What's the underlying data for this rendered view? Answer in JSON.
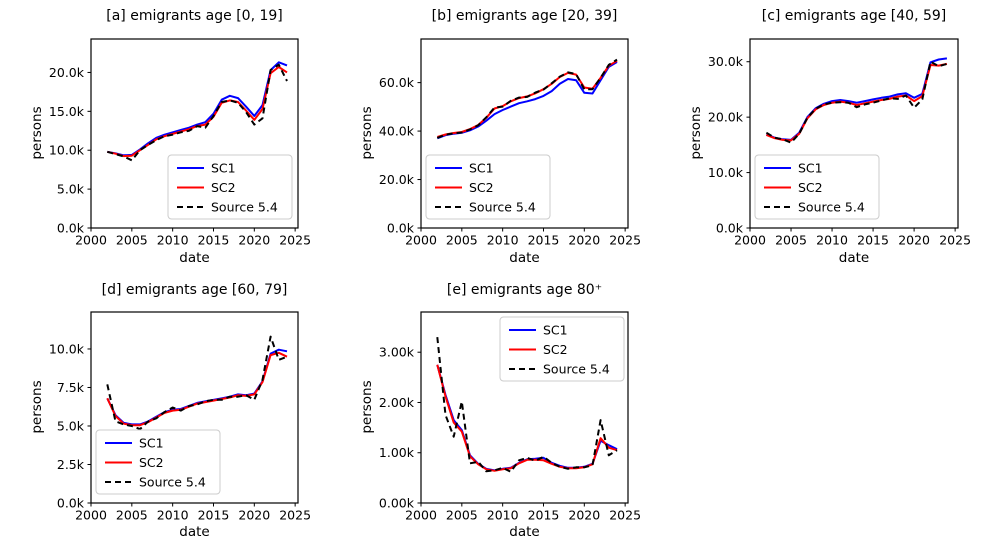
{
  "figure": {
    "background": "#ffffff",
    "series_colors": {
      "SC1": "#0000ff",
      "SC2": "#ff0000",
      "Source 5.4": "#000000"
    },
    "legend_labels": [
      "SC1",
      "SC2",
      "Source 5.4"
    ]
  },
  "chart_data": [
    {
      "id": "a",
      "type": "line",
      "title": "[a] emigrants age [0, 19]",
      "xlabel": "date",
      "ylabel": "persons",
      "xlim": [
        2000,
        2025.35
      ],
      "ylim": [
        0,
        24300
      ],
      "xticks": [
        2000,
        2005,
        2010,
        2015,
        2020,
        2025
      ],
      "yticks": [
        0,
        5000,
        10000,
        15000,
        20000
      ],
      "ytick_labels": [
        "0.0k",
        "5.0k",
        "10.0k",
        "15.0k",
        "20.0k"
      ],
      "legend_loc": "lower right",
      "grid": false,
      "x": [
        2002,
        2003,
        2004,
        2005,
        2006,
        2007,
        2008,
        2009,
        2010,
        2011,
        2012,
        2013,
        2014,
        2015,
        2016,
        2017,
        2018,
        2019,
        2020,
        2021,
        2022,
        2023,
        2024
      ],
      "series": [
        {
          "name": "SC1",
          "color": "#0000ff",
          "style": "solid",
          "values": [
            9800,
            9600,
            9350,
            9400,
            10100,
            10900,
            11600,
            12000,
            12300,
            12600,
            12900,
            13300,
            13600,
            14700,
            16500,
            17000,
            16700,
            15600,
            14400,
            15800,
            20300,
            21300,
            20900
          ]
        },
        {
          "name": "SC2",
          "color": "#ff0000",
          "style": "solid",
          "values": [
            9800,
            9550,
            9250,
            9300,
            10000,
            10700,
            11400,
            11800,
            12100,
            12400,
            12700,
            13100,
            13300,
            14300,
            16100,
            16400,
            16200,
            15100,
            13900,
            15300,
            19900,
            20700,
            20000
          ]
        },
        {
          "name": "Source 5.4",
          "color": "#000000",
          "style": "dashed",
          "values": [
            9800,
            9500,
            9200,
            8700,
            10000,
            10700,
            11300,
            11800,
            12000,
            12300,
            12500,
            13100,
            12900,
            14400,
            16200,
            16400,
            16100,
            14900,
            13300,
            14100,
            20300,
            21000,
            18900
          ]
        }
      ]
    },
    {
      "id": "b",
      "type": "line",
      "title": "[b] emigrants age [20, 39]",
      "xlabel": "date",
      "ylabel": "persons",
      "xlim": [
        2000,
        2025.35
      ],
      "ylim": [
        0,
        78000
      ],
      "xticks": [
        2000,
        2005,
        2010,
        2015,
        2020,
        2025
      ],
      "yticks": [
        0,
        20000,
        40000,
        60000
      ],
      "ytick_labels": [
        "0.0k",
        "20.0k",
        "40.0k",
        "60.0k"
      ],
      "legend_loc": "lower left",
      "grid": false,
      "x": [
        2002,
        2003,
        2004,
        2005,
        2006,
        2007,
        2008,
        2009,
        2010,
        2011,
        2012,
        2013,
        2014,
        2015,
        2016,
        2017,
        2018,
        2019,
        2020,
        2021,
        2022,
        2023,
        2024
      ],
      "series": [
        {
          "name": "SC1",
          "color": "#0000ff",
          "style": "solid",
          "values": [
            37000,
            38300,
            38900,
            39300,
            40300,
            41900,
            44300,
            47000,
            48700,
            50100,
            51500,
            52300,
            53200,
            54500,
            56500,
            59500,
            61500,
            61000,
            55800,
            55500,
            61000,
            66500,
            68500
          ]
        },
        {
          "name": "SC2",
          "color": "#ff0000",
          "style": "solid",
          "values": [
            37600,
            38600,
            39200,
            39600,
            40800,
            42500,
            45500,
            49300,
            50300,
            52300,
            53600,
            54300,
            55600,
            57300,
            59500,
            62300,
            64000,
            63300,
            58000,
            57500,
            62000,
            67000,
            69000
          ]
        },
        {
          "name": "Source 5.4",
          "color": "#000000",
          "style": "dashed",
          "values": [
            37200,
            38500,
            39100,
            39400,
            40700,
            42400,
            45700,
            49700,
            50100,
            52500,
            53800,
            54100,
            55900,
            57100,
            59700,
            62500,
            64200,
            63500,
            57200,
            57300,
            62000,
            67300,
            69500
          ]
        }
      ]
    },
    {
      "id": "c",
      "type": "line",
      "title": "[c] emigrants age [40, 59]",
      "xlabel": "date",
      "ylabel": "persons",
      "xlim": [
        2000,
        2025.35
      ],
      "ylim": [
        0,
        34100
      ],
      "xticks": [
        2000,
        2005,
        2010,
        2015,
        2020,
        2025
      ],
      "yticks": [
        0,
        10000,
        20000,
        30000
      ],
      "ytick_labels": [
        "0.0k",
        "10.0k",
        "20.0k",
        "30.0k"
      ],
      "legend_loc": "lower left",
      "grid": false,
      "x": [
        2002,
        2003,
        2004,
        2005,
        2006,
        2007,
        2008,
        2009,
        2010,
        2011,
        2012,
        2013,
        2014,
        2015,
        2016,
        2017,
        2018,
        2019,
        2020,
        2021,
        2022,
        2023,
        2024
      ],
      "series": [
        {
          "name": "SC1",
          "color": "#0000ff",
          "style": "solid",
          "values": [
            16900,
            16300,
            16000,
            15900,
            17200,
            20000,
            21600,
            22400,
            22900,
            23100,
            22900,
            22600,
            22900,
            23200,
            23500,
            23700,
            24100,
            24300,
            23500,
            24200,
            29900,
            30400,
            30600
          ]
        },
        {
          "name": "SC2",
          "color": "#ff0000",
          "style": "solid",
          "values": [
            16800,
            16200,
            15900,
            15800,
            17000,
            19800,
            21400,
            22200,
            22600,
            22800,
            22600,
            22200,
            22500,
            22800,
            23100,
            23300,
            23700,
            23900,
            22900,
            23800,
            29400,
            29300,
            29600
          ]
        },
        {
          "name": "Source 5.4",
          "color": "#000000",
          "style": "dashed",
          "values": [
            17200,
            16300,
            16000,
            15400,
            17000,
            19900,
            21500,
            22300,
            22600,
            22700,
            22600,
            21800,
            22300,
            22600,
            23000,
            23400,
            23300,
            23900,
            21700,
            23200,
            30000,
            29200,
            29600
          ]
        }
      ]
    },
    {
      "id": "d",
      "type": "line",
      "title": "[d] emigrants age [60, 79]",
      "xlabel": "date",
      "ylabel": "persons",
      "xlim": [
        2000,
        2025.35
      ],
      "ylim": [
        0,
        12400
      ],
      "xticks": [
        2000,
        2005,
        2010,
        2015,
        2020,
        2025
      ],
      "yticks": [
        0,
        2500,
        5000,
        7500,
        10000
      ],
      "ytick_labels": [
        "0.0k",
        "2.5k",
        "5.0k",
        "7.5k",
        "10.0k"
      ],
      "legend_loc": "lower left",
      "grid": false,
      "x": [
        2002,
        2003,
        2004,
        2005,
        2006,
        2007,
        2008,
        2009,
        2010,
        2011,
        2012,
        2013,
        2014,
        2015,
        2016,
        2017,
        2018,
        2019,
        2020,
        2021,
        2022,
        2023,
        2024
      ],
      "series": [
        {
          "name": "SC1",
          "color": "#0000ff",
          "style": "solid",
          "values": [
            6800,
            5700,
            5200,
            5100,
            5100,
            5300,
            5600,
            5900,
            6050,
            6100,
            6300,
            6500,
            6600,
            6700,
            6800,
            6900,
            7050,
            7000,
            7100,
            7900,
            9700,
            9950,
            9850
          ]
        },
        {
          "name": "SC2",
          "color": "#ff0000",
          "style": "solid",
          "values": [
            6800,
            5650,
            5150,
            5050,
            5050,
            5250,
            5550,
            5850,
            6000,
            6050,
            6250,
            6450,
            6550,
            6650,
            6750,
            6850,
            7000,
            6950,
            7050,
            7850,
            9600,
            9750,
            9500
          ]
        },
        {
          "name": "Source 5.4",
          "color": "#000000",
          "style": "dashed",
          "values": [
            7700,
            5300,
            5100,
            5000,
            4800,
            5300,
            5500,
            5900,
            6200,
            6000,
            6300,
            6400,
            6600,
            6700,
            6700,
            6900,
            6900,
            7000,
            6700,
            8000,
            10800,
            9300,
            9500
          ]
        }
      ]
    },
    {
      "id": "e",
      "type": "line",
      "title": "[e] emigrants age 80⁺",
      "xlabel": "date",
      "ylabel": "persons",
      "xlim": [
        2000,
        2025.35
      ],
      "ylim": [
        0,
        3800
      ],
      "xticks": [
        2000,
        2005,
        2010,
        2015,
        2020,
        2025
      ],
      "yticks": [
        0,
        1000,
        2000,
        3000
      ],
      "ytick_labels": [
        "0.00k",
        "1.00k",
        "2.00k",
        "3.00k"
      ],
      "legend_loc": "upper right",
      "grid": false,
      "x": [
        2002,
        2003,
        2004,
        2005,
        2006,
        2007,
        2008,
        2009,
        2010,
        2011,
        2012,
        2013,
        2014,
        2015,
        2016,
        2017,
        2018,
        2019,
        2020,
        2021,
        2022,
        2023,
        2024
      ],
      "series": [
        {
          "name": "SC1",
          "color": "#0000ff",
          "style": "solid",
          "values": [
            2750,
            2150,
            1650,
            1450,
            950,
            780,
            680,
            650,
            680,
            700,
            800,
            870,
            880,
            900,
            800,
            740,
            700,
            700,
            720,
            780,
            1240,
            1150,
            1070
          ]
        },
        {
          "name": "SC2",
          "color": "#ff0000",
          "style": "solid",
          "values": [
            2750,
            2120,
            1600,
            1420,
            930,
            770,
            670,
            640,
            670,
            690,
            790,
            860,
            860,
            850,
            780,
            720,
            690,
            690,
            710,
            770,
            1290,
            1100,
            1050
          ]
        },
        {
          "name": "Source 5.4",
          "color": "#000000",
          "style": "dashed",
          "values": [
            3300,
            1750,
            1320,
            2020,
            790,
            820,
            630,
            650,
            700,
            620,
            850,
            900,
            840,
            920,
            800,
            720,
            680,
            710,
            710,
            750,
            1650,
            950,
            1050
          ]
        }
      ]
    }
  ]
}
